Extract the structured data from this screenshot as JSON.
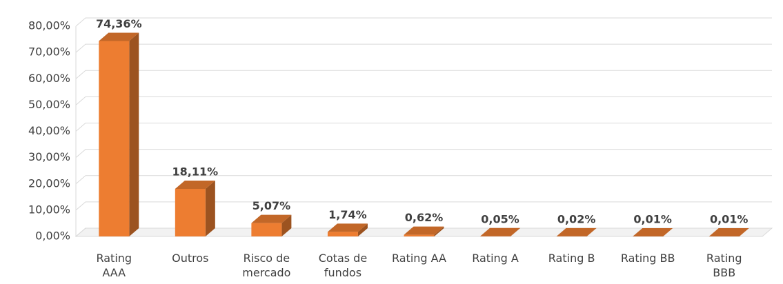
{
  "chart_data": {
    "type": "bar3d",
    "categories": [
      "Rating AAA",
      "Outros",
      "Risco de mercado",
      "Cotas de fundos",
      "Rating AA",
      "Rating A",
      "Rating B",
      "Rating BB",
      "Rating BBB"
    ],
    "values": [
      74.36,
      18.11,
      5.07,
      1.74,
      0.62,
      0.05,
      0.02,
      0.01,
      0.01
    ],
    "value_labels": [
      "74,36%",
      "18,11%",
      "5,07%",
      "1,74%",
      "0,62%",
      "0,05%",
      "0,02%",
      "0,01%",
      "0,01%"
    ],
    "color": "#ed7d31",
    "ylim": [
      0,
      80
    ],
    "yticks": [
      {
        "value": 0,
        "label": "0,00%"
      },
      {
        "value": 10,
        "label": "10,00%"
      },
      {
        "value": 20,
        "label": "20,00%"
      },
      {
        "value": 30,
        "label": "30,00%"
      },
      {
        "value": 40,
        "label": "40,00%"
      },
      {
        "value": 50,
        "label": "50,00%"
      },
      {
        "value": 60,
        "label": "60,00%"
      },
      {
        "value": 70,
        "label": "70,00%"
      },
      {
        "value": 80,
        "label": "80,00%"
      }
    ],
    "grid": true
  }
}
